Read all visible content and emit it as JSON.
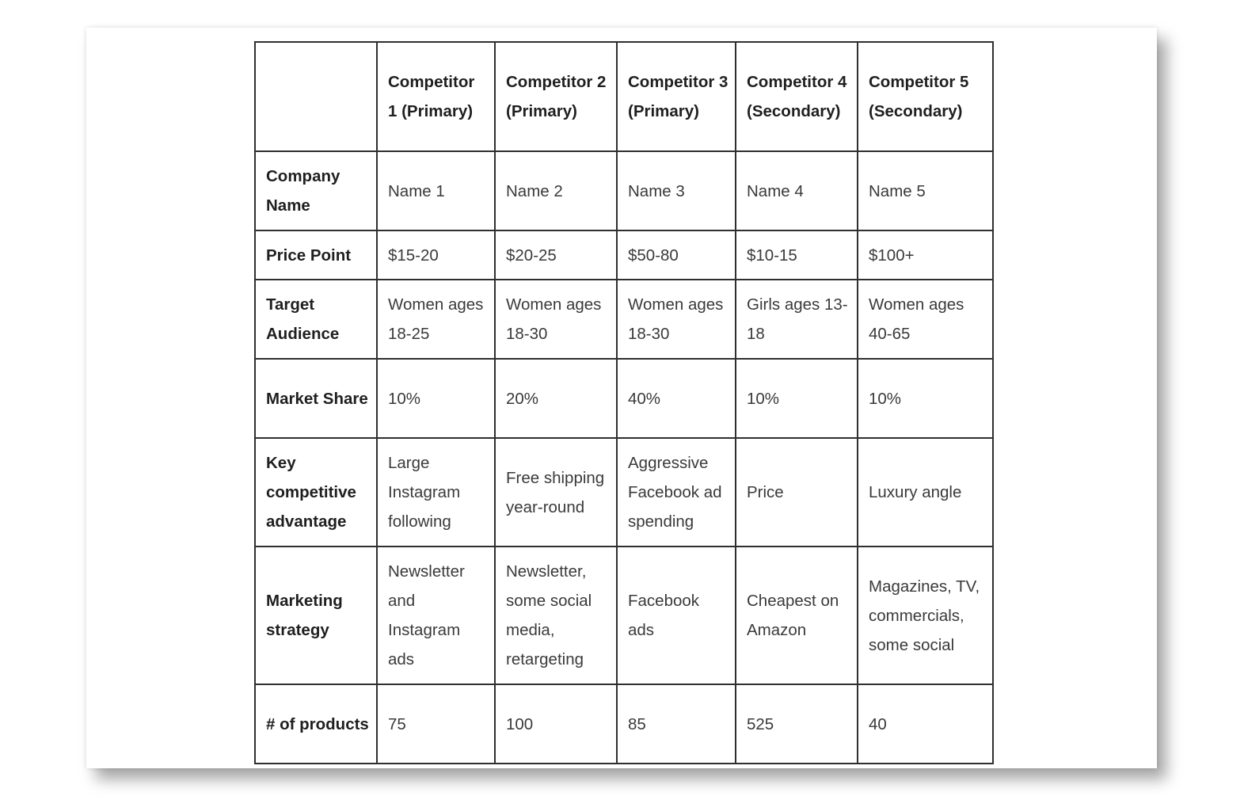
{
  "table": {
    "header": [
      "",
      "Competitor 1 (Primary)",
      "Competitor 2 (Primary)",
      "Competitor 3 (Primary)",
      "Competitor 4 (Secondary)",
      "Competitor 5 (Secondary)"
    ],
    "rows": [
      {
        "label": "Company Name",
        "cells": [
          "Name 1",
          "Name 2",
          "Name 3",
          "Name 4",
          "Name 5"
        ]
      },
      {
        "label": "Price Point",
        "cells": [
          "$15-20",
          "$20-25",
          "$50-80",
          "$10-15",
          "$100+"
        ]
      },
      {
        "label": "Target Audience",
        "cells": [
          "Women ages 18-25",
          "Women ages 18-30",
          "Women ages 18-30",
          "Girls ages 13-18",
          "Women ages 40-65"
        ]
      },
      {
        "label": "Market Share",
        "cells": [
          "10%",
          "20%",
          "40%",
          "10%",
          "10%"
        ]
      },
      {
        "label": "Key competitive advantage",
        "cells": [
          "Large Instagram following",
          "Free shipping year-round",
          "Aggressive Facebook ad spending",
          "Price",
          "Luxury angle"
        ]
      },
      {
        "label": "Marketing strategy",
        "cells": [
          "Newsletter and Instagram ads",
          "Newsletter, some social media, retargeting",
          "Facebook ads",
          "Cheapest on Amazon",
          "Magazines, TV, commercials, some social"
        ]
      },
      {
        "label": "# of products",
        "cells": [
          "75",
          "100",
          "85",
          "525",
          "40"
        ]
      }
    ]
  }
}
